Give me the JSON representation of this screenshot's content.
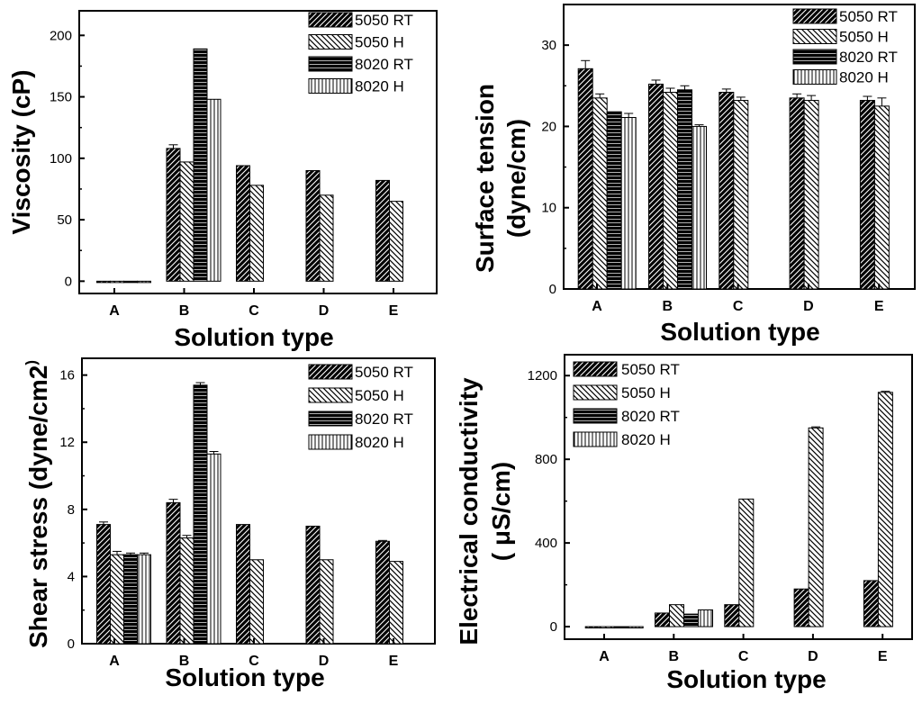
{
  "chart_data": [
    {
      "type": "bar",
      "ylabel": "Viscosity (cP)",
      "xlabel": "Solution type",
      "categories": [
        "A",
        "B",
        "C",
        "D",
        "E"
      ],
      "ylim": [
        -10,
        220
      ],
      "yticks": [
        "0",
        "50",
        "100",
        "150",
        "200"
      ],
      "series": [
        {
          "name": "5050 RT",
          "values": [
            0,
            108,
            94,
            90,
            82
          ],
          "errors": [
            0,
            3,
            0,
            0,
            0
          ]
        },
        {
          "name": "5050 H",
          "values": [
            0,
            97,
            78,
            70,
            65
          ],
          "errors": [
            0,
            0,
            0,
            0,
            0
          ]
        },
        {
          "name": "8020 RT",
          "values": [
            0,
            189,
            null,
            null,
            null
          ],
          "errors": [
            0,
            0,
            0,
            0,
            0
          ]
        },
        {
          "name": "8020 H",
          "values": [
            0,
            148,
            null,
            null,
            null
          ],
          "errors": [
            0,
            0,
            0,
            0,
            0
          ]
        }
      ]
    },
    {
      "type": "bar",
      "ylabel": "Surface tension (dyne/cm)",
      "xlabel": "Solution type",
      "categories": [
        "A",
        "B",
        "C",
        "D",
        "E"
      ],
      "ylim": [
        0,
        35
      ],
      "yticks": [
        "0",
        "10",
        "20",
        "30"
      ],
      "series": [
        {
          "name": "5050 RT",
          "values": [
            27.1,
            25.2,
            24.2,
            23.5,
            23.2
          ],
          "errors": [
            1.0,
            0.5,
            0.4,
            0.5,
            0.5
          ]
        },
        {
          "name": "5050 H",
          "values": [
            23.5,
            24.2,
            23.2,
            23.2,
            22.5
          ],
          "errors": [
            0.5,
            0.5,
            0.4,
            0.6,
            1.0
          ]
        },
        {
          "name": "8020 RT",
          "values": [
            21.8,
            24.5,
            null,
            null,
            null
          ],
          "errors": [
            0,
            0.5,
            0,
            0,
            0
          ]
        },
        {
          "name": "8020 H",
          "values": [
            21.1,
            20.0,
            null,
            null,
            null
          ],
          "errors": [
            0.5,
            0.2,
            0,
            0,
            0
          ]
        }
      ]
    },
    {
      "type": "bar",
      "ylabel": "Shear stress (dyne/cm2)",
      "xlabel": "Solution type",
      "categories": [
        "A",
        "B",
        "C",
        "D",
        "E"
      ],
      "ylim": [
        0,
        17
      ],
      "yticks": [
        "0",
        "4",
        "8",
        "12",
        "16"
      ],
      "series": [
        {
          "name": "5050 RT",
          "values": [
            7.1,
            8.4,
            7.1,
            7.0,
            6.1
          ],
          "errors": [
            0.15,
            0.2,
            0,
            0,
            0.05
          ]
        },
        {
          "name": "5050 H",
          "values": [
            5.3,
            6.3,
            5.0,
            5.0,
            4.9
          ],
          "errors": [
            0.2,
            0.15,
            0,
            0,
            0
          ]
        },
        {
          "name": "8020 RT",
          "values": [
            5.3,
            15.4,
            null,
            null,
            null
          ],
          "errors": [
            0.1,
            0.15,
            0,
            0,
            0
          ]
        },
        {
          "name": "8020 H",
          "values": [
            5.3,
            11.3,
            null,
            null,
            null
          ],
          "errors": [
            0.1,
            0.15,
            0,
            0,
            0
          ]
        }
      ]
    },
    {
      "type": "bar",
      "ylabel": "Electrical conductivity ( μS/cm)",
      "xlabel": "Solution type",
      "categories": [
        "A",
        "B",
        "C",
        "D",
        "E"
      ],
      "ylim": [
        -60,
        1300
      ],
      "yticks": [
        "0",
        "400",
        "800",
        "1200"
      ],
      "series": [
        {
          "name": "5050 RT",
          "values": [
            -5,
            65,
            105,
            180,
            220
          ],
          "errors": [
            0,
            0,
            0,
            0,
            0
          ]
        },
        {
          "name": "5050 H",
          "values": [
            -5,
            105,
            610,
            950,
            1120
          ],
          "errors": [
            0,
            0,
            0,
            5,
            5
          ]
        },
        {
          "name": "8020 RT",
          "values": [
            -5,
            60,
            null,
            null,
            null
          ],
          "errors": [
            0,
            0,
            0,
            0,
            0
          ]
        },
        {
          "name": "8020 H",
          "values": [
            -5,
            80,
            null,
            null,
            null
          ],
          "errors": [
            0,
            0,
            0,
            0,
            0
          ]
        }
      ]
    }
  ]
}
